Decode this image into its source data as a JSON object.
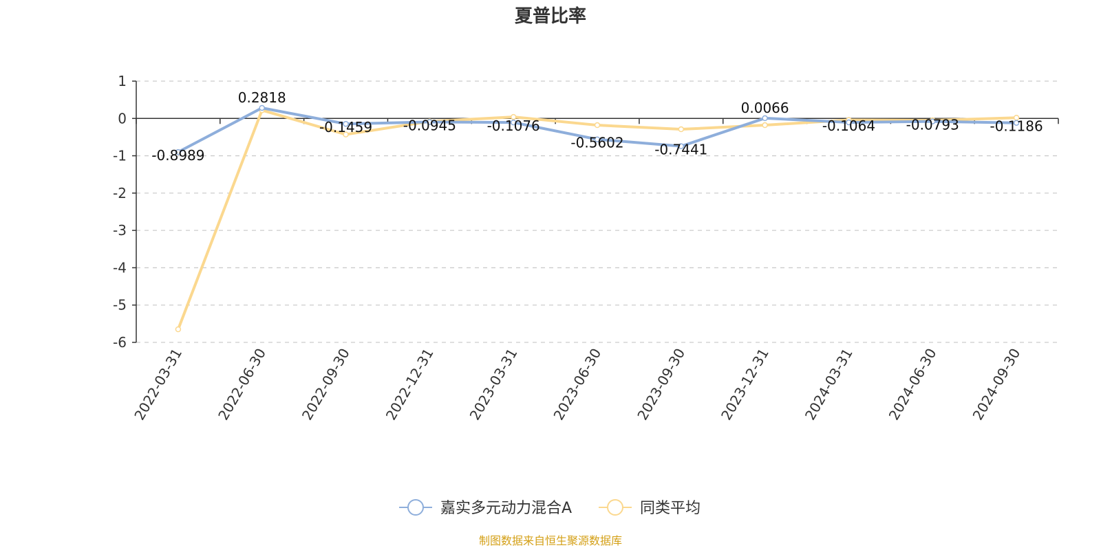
{
  "chart_data": {
    "type": "line",
    "title": "夏普比率",
    "categories": [
      "2022-03-31",
      "2022-06-30",
      "2022-09-30",
      "2022-12-31",
      "2023-03-31",
      "2023-06-30",
      "2023-09-30",
      "2023-12-31",
      "2024-03-31",
      "2024-06-30",
      "2024-09-30"
    ],
    "series": [
      {
        "name": "嘉实多元动力混合A",
        "color": "#8eaedb",
        "values": [
          -0.8989,
          0.2818,
          -0.1459,
          -0.0945,
          -0.1076,
          -0.5602,
          -0.7441,
          0.0066,
          -0.1064,
          -0.0793,
          -0.1186
        ],
        "labels": [
          "-0.8989",
          "0.2818",
          "-0.1459",
          "-0.0945",
          "-0.1076",
          "-0.5602",
          "-0.7441",
          "0.0066",
          "-0.1064",
          "-0.0793",
          "-0.1186"
        ]
      },
      {
        "name": "同类平均",
        "color": "#fbd88f",
        "values": [
          -5.65,
          0.22,
          -0.43,
          -0.08,
          0.04,
          -0.18,
          -0.29,
          -0.18,
          -0.04,
          -0.05,
          0.02
        ]
      }
    ],
    "ylim": [
      -6,
      1
    ],
    "yticks": [
      "1",
      "0",
      "-1",
      "-2",
      "-3",
      "-4",
      "-5",
      "-6"
    ],
    "grid": true,
    "legend_position": "bottom-center"
  },
  "source_text": "制图数据来自恒生聚源数据库"
}
